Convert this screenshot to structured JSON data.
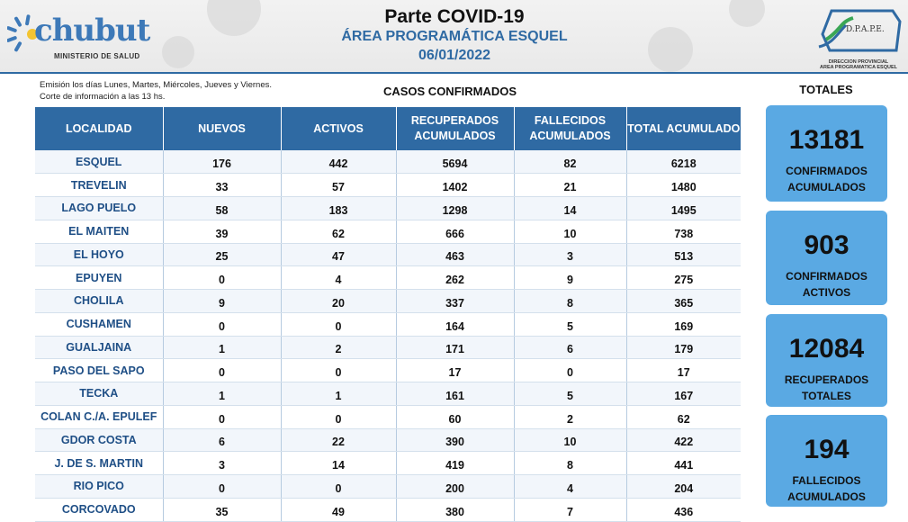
{
  "header": {
    "logo_text": "chubut",
    "logo_subtitle": "MINISTERIO DE SALUD",
    "title": "Parte COVID-19",
    "area": "ÁREA PROGRAMÁTICA ESQUEL",
    "date": "06/01/2022",
    "right_logo_acronym": "D.P.A.P.E.",
    "right_logo_line1": "DIRECCION PROVINCIAL",
    "right_logo_line2": "AREA PROGRAMATICA ESQUEL",
    "accent_color": "#2f6aa3"
  },
  "note": {
    "line1": "Emisión los días Lunes, Martes, Miércoles, Jueves y Viernes.",
    "line2": "Corte de información a las 13 hs."
  },
  "section_title": "CASOS CONFIRMADOS",
  "table": {
    "columns": [
      "LOCALIDAD",
      "NUEVOS",
      "ACTIVOS",
      "RECUPERADOS ACUMULADOS",
      "FALLECIDOS ACUMULADOS",
      "TOTAL ACUMULADO"
    ],
    "rows": [
      [
        "ESQUEL",
        "176",
        "442",
        "5694",
        "82",
        "6218"
      ],
      [
        "TREVELIN",
        "33",
        "57",
        "1402",
        "21",
        "1480"
      ],
      [
        "LAGO PUELO",
        "58",
        "183",
        "1298",
        "14",
        "1495"
      ],
      [
        "EL MAITEN",
        "39",
        "62",
        "666",
        "10",
        "738"
      ],
      [
        "EL HOYO",
        "25",
        "47",
        "463",
        "3",
        "513"
      ],
      [
        "EPUYEN",
        "0",
        "4",
        "262",
        "9",
        "275"
      ],
      [
        "CHOLILA",
        "9",
        "20",
        "337",
        "8",
        "365"
      ],
      [
        "CUSHAMEN",
        "0",
        "0",
        "164",
        "5",
        "169"
      ],
      [
        "GUALJAINA",
        "1",
        "2",
        "171",
        "6",
        "179"
      ],
      [
        "PASO DEL SAPO",
        "0",
        "0",
        "17",
        "0",
        "17"
      ],
      [
        "TECKA",
        "1",
        "1",
        "161",
        "5",
        "167"
      ],
      [
        "COLAN C./A. EPULEF",
        "0",
        "0",
        "60",
        "2",
        "62"
      ],
      [
        "GDOR COSTA",
        "6",
        "22",
        "390",
        "10",
        "422"
      ],
      [
        "J. DE S. MARTIN",
        "3",
        "14",
        "419",
        "8",
        "441"
      ],
      [
        "RIO PICO",
        "0",
        "0",
        "200",
        "4",
        "204"
      ],
      [
        "CORCOVADO",
        "35",
        "49",
        "380",
        "7",
        "436"
      ]
    ]
  },
  "totals": {
    "title": "TOTALES",
    "card_color": "#5aa9e3",
    "cards": [
      {
        "value": "13181",
        "label1": "CONFIRMADOS",
        "label2": "ACUMULADOS"
      },
      {
        "value": "903",
        "label1": "CONFIRMADOS",
        "label2": "ACTIVOS"
      },
      {
        "value": "12084",
        "label1": "RECUPERADOS",
        "label2": "TOTALES"
      },
      {
        "value": "194",
        "label1": "FALLECIDOS",
        "label2": "ACUMULADOS"
      }
    ]
  }
}
